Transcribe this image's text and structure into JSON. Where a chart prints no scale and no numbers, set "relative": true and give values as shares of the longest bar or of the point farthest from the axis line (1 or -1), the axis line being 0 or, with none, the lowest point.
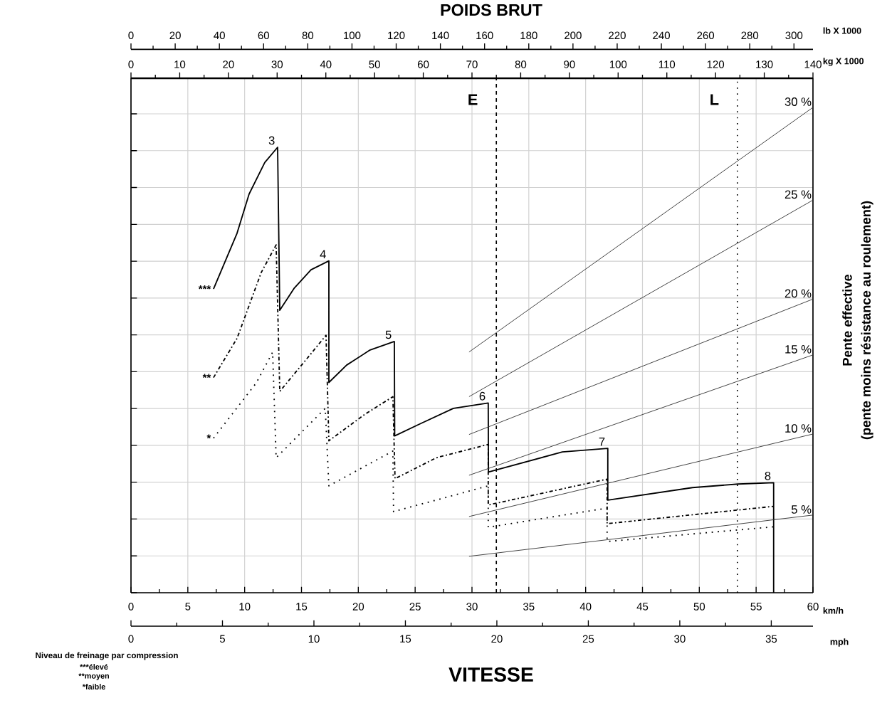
{
  "chart_data": [
    {
      "type": "line",
      "xlabel": "km/h",
      "x2label": "mph",
      "relative": true,
      "grid": true,
      "marker": "none",
      "xlim": [
        0,
        60
      ],
      "xticks": [
        0,
        5,
        10,
        15,
        20,
        25,
        30,
        35,
        40,
        45,
        50,
        55,
        60
      ],
      "x2lim": [
        0,
        37.28
      ],
      "x2ticks": [
        0,
        5,
        10,
        15,
        20,
        25,
        30,
        35
      ],
      "series": [
        {
          "name": "***",
          "color": "#000000",
          "line_style": "solid",
          "x": [
            7.26,
            9.33,
            10.39,
            11.77,
            12.9,
            13.09,
            14.34,
            15.84,
            17.41,
            17.41,
            18.97,
            21.04,
            23.17,
            23.2,
            25.42,
            28.37,
            31.43,
            31.45,
            37.95,
            41.95,
            41.95,
            49.4,
            53.41,
            56.54,
            56.54
          ],
          "values": [
            0.682,
            0.807,
            0.895,
            0.966,
            1,
            0.634,
            0.683,
            0.725,
            0.745,
            0.472,
            0.511,
            0.545,
            0.564,
            0.352,
            0.379,
            0.414,
            0.426,
            0.271,
            0.316,
            0.324,
            0.208,
            0.236,
            0.244,
            0.247,
            0
          ]
        },
        {
          "name": "**",
          "color": "#000000",
          "line_style": "dashdot",
          "x": [
            7.26,
            9.33,
            11.46,
            12.77,
            13.09,
            15.59,
            17.16,
            17.41,
            20.6,
            23.04,
            23.23,
            26.86,
            31.43,
            31.43,
            41.89,
            41.89,
            56.54
          ],
          "values": [
            0.483,
            0.571,
            0.719,
            0.781,
            0.452,
            0.529,
            0.578,
            0.341,
            0.401,
            0.44,
            0.256,
            0.303,
            0.333,
            0.197,
            0.255,
            0.155,
            0.194
          ]
        },
        {
          "name": "*",
          "color": "#000000",
          "line_style": "dotted",
          "x": [
            7.26,
            11.02,
            12.46,
            12.77,
            17.09,
            17.41,
            23.04,
            23.1,
            31.43,
            31.43,
            41.89,
            41.89,
            56.54
          ],
          "values": [
            0.347,
            0.471,
            0.54,
            0.303,
            0.414,
            0.24,
            0.318,
            0.182,
            0.24,
            0.147,
            0.19,
            0.115,
            0.148
          ]
        }
      ],
      "annotations": [
        {
          "text": "3",
          "x": 12.9,
          "y": 1
        },
        {
          "text": "4",
          "x": 17.41,
          "y": 0.745
        },
        {
          "text": "5",
          "x": 23.17,
          "y": 0.564
        },
        {
          "text": "6",
          "x": 31.43,
          "y": 0.426
        },
        {
          "text": "7",
          "x": 41.95,
          "y": 0.324
        },
        {
          "text": "8",
          "x": 56.54,
          "y": 0.247
        },
        "Niveau de freinage par compression",
        "***élevé",
        "**moyen",
        "*faible",
        "VITESSE"
      ]
    },
    {
      "type": "line",
      "title": "POIDS BRUT",
      "xlabel": "kg X 1000",
      "x2label": "lb X 1000",
      "ylabel": [
        "Pente effective",
        "(pente moins résistance au roulement)"
      ],
      "relative": true,
      "marker": "none",
      "xlim": [
        0,
        140
      ],
      "xticks": [
        0,
        10,
        20,
        30,
        40,
        50,
        60,
        70,
        80,
        90,
        100,
        110,
        120,
        130,
        140
      ],
      "x2lim": [
        0,
        308.6
      ],
      "x2ticks": [
        0,
        20,
        40,
        60,
        80,
        100,
        120,
        140,
        160,
        180,
        200,
        220,
        240,
        260,
        280,
        300
      ],
      "series": [
        {
          "name": "30 %",
          "color": "#333333",
          "line_style": "solid",
          "x": [
            69.4,
            140
          ],
          "values": [
            0.496,
            1.0
          ]
        },
        {
          "name": "25 %",
          "color": "#333333",
          "line_style": "solid",
          "x": [
            69.4,
            140
          ],
          "values": [
            0.404,
            0.809
          ]
        },
        {
          "name": "20 %",
          "color": "#333333",
          "line_style": "solid",
          "x": [
            69.4,
            140
          ],
          "values": [
            0.326,
            0.605
          ]
        },
        {
          "name": "15 %",
          "color": "#333333",
          "line_style": "solid",
          "x": [
            69.4,
            140
          ],
          "values": [
            0.242,
            0.49
          ]
        },
        {
          "name": "10 %",
          "color": "#333333",
          "line_style": "solid",
          "x": [
            69.4,
            140
          ],
          "values": [
            0.157,
            0.327
          ]
        },
        {
          "name": "5 %",
          "color": "#333333",
          "line_style": "solid",
          "x": [
            69.4,
            140
          ],
          "values": [
            0.075,
            0.16
          ]
        }
      ],
      "ref_lines": [
        {
          "axis": "x",
          "value": 75,
          "label": "E",
          "line_style": "dashed"
        },
        {
          "axis": "x",
          "value": 124.5,
          "label": "L",
          "line_style": "dotted"
        }
      ]
    }
  ]
}
